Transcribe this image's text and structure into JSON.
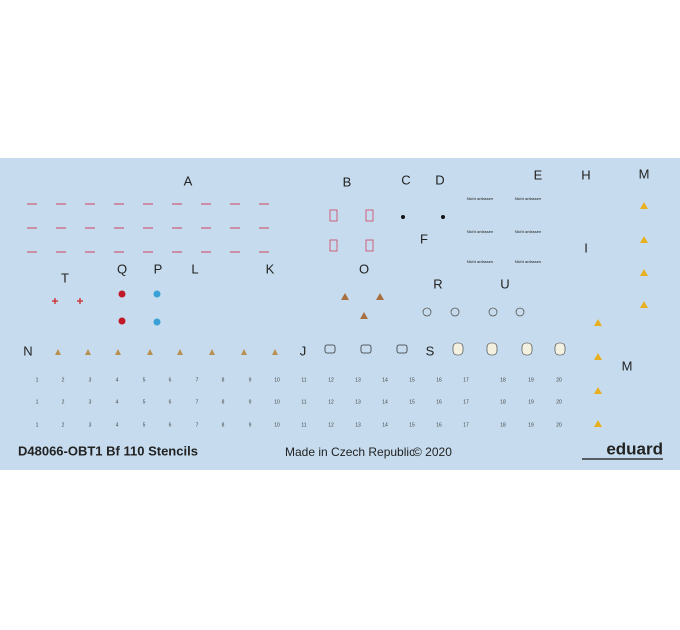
{
  "sheet": {
    "letters": [
      "A",
      "B",
      "C",
      "D",
      "E",
      "H",
      "M",
      "F",
      "I",
      "T",
      "Q",
      "P",
      "L",
      "K",
      "O",
      "R",
      "U",
      "N",
      "J",
      "S",
      "M"
    ],
    "stencil_label": "Nicht anfassen",
    "number_rows": [
      [
        "1",
        "2",
        "3",
        "4",
        "5",
        "6",
        "7",
        "8",
        "9",
        "10",
        "11",
        "12",
        "13",
        "14",
        "15",
        "16",
        "17",
        "18",
        "19",
        "20"
      ],
      [
        "1",
        "2",
        "3",
        "4",
        "5",
        "6",
        "7",
        "8",
        "9",
        "10",
        "11",
        "12",
        "13",
        "14",
        "15",
        "16",
        "17",
        "18",
        "19",
        "20"
      ],
      [
        "1",
        "2",
        "3",
        "4",
        "5",
        "6",
        "7",
        "8",
        "9",
        "10",
        "11",
        "12",
        "13",
        "14",
        "15",
        "16",
        "17",
        "18",
        "19",
        "20"
      ]
    ]
  },
  "footer": {
    "code": "D48066-OBT1 Bf 110 Stencils",
    "origin": "Made in Czech Republic",
    "copyright": "© 2020",
    "brand": "eduard"
  }
}
